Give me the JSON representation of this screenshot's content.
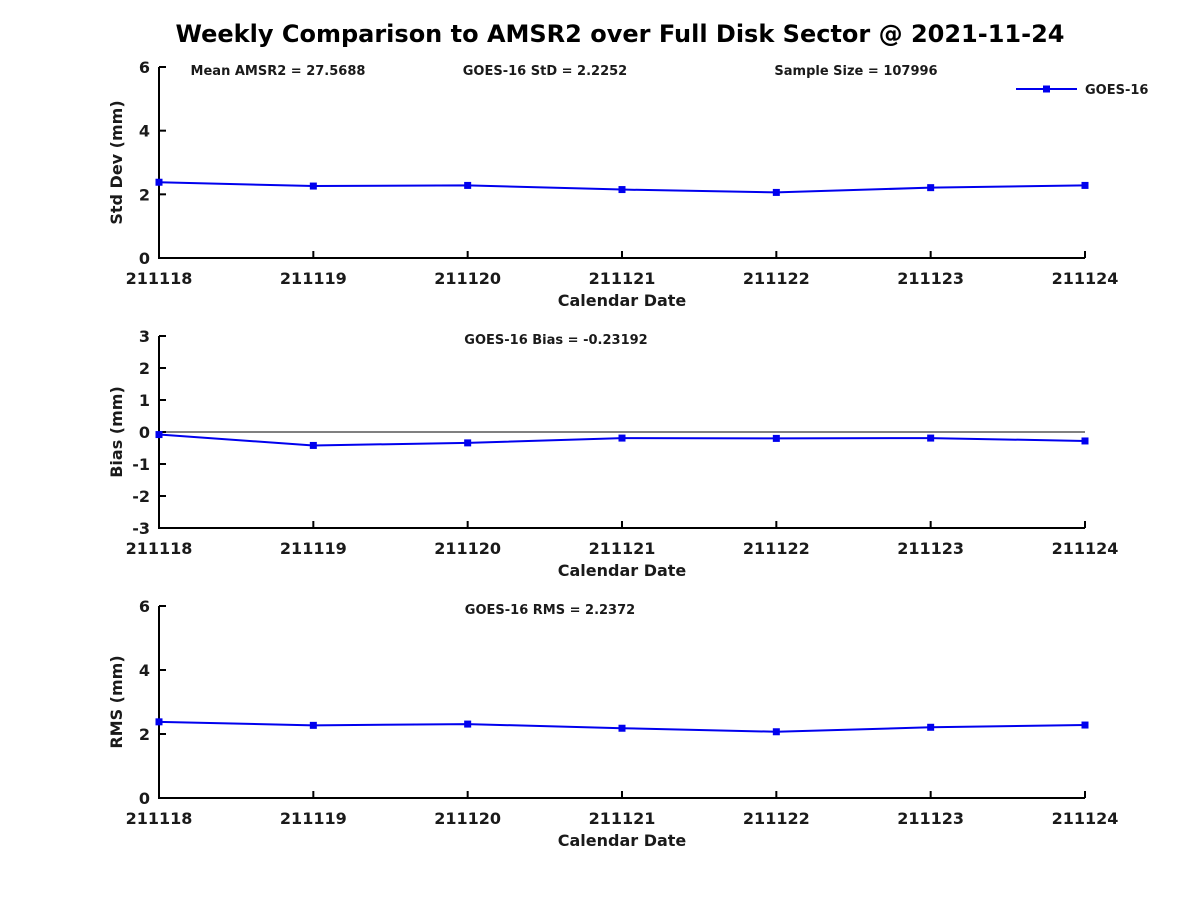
{
  "title": "Weekly Comparison to AMSR2 over Full Disk Sector @ 2021-11-24",
  "colors": {
    "series_line": "#0000ee",
    "axis": "#000000",
    "text": "#1a1a1a",
    "background": "#ffffff"
  },
  "legend": {
    "label": "GOES-16",
    "position": "top-right",
    "marker": "filled-square"
  },
  "x_axis": {
    "label": "Calendar Date",
    "categories": [
      "211118",
      "211119",
      "211120",
      "211121",
      "211122",
      "211123",
      "211124"
    ]
  },
  "chart_data": [
    {
      "type": "line",
      "name": "std-dev",
      "ylabel": "Std Dev (mm)",
      "xlabel": "Calendar Date",
      "ylim": [
        0,
        6
      ],
      "yticks": [
        "0",
        "2",
        "4",
        "6"
      ],
      "grid": false,
      "zero_line": false,
      "legend_visible": true,
      "categories": [
        "211118",
        "211119",
        "211120",
        "211121",
        "211122",
        "211123",
        "211124"
      ],
      "series": [
        {
          "name": "GOES-16",
          "values": [
            2.38,
            2.26,
            2.28,
            2.15,
            2.06,
            2.21,
            2.28
          ]
        }
      ],
      "annotations": [
        {
          "text": "Mean AMSR2 = 27.5688"
        },
        {
          "text": "GOES-16 StD = 2.2252"
        },
        {
          "text": "Sample Size = 107996"
        }
      ]
    },
    {
      "type": "line",
      "name": "bias",
      "ylabel": "Bias (mm)",
      "xlabel": "Calendar Date",
      "ylim": [
        -3,
        3
      ],
      "yticks": [
        "-3",
        "-2",
        "-1",
        "0",
        "1",
        "2",
        "3"
      ],
      "grid": false,
      "zero_line": true,
      "legend_visible": false,
      "categories": [
        "211118",
        "211119",
        "211120",
        "211121",
        "211122",
        "211123",
        "211124"
      ],
      "series": [
        {
          "name": "GOES-16",
          "values": [
            -0.08,
            -0.42,
            -0.34,
            -0.19,
            -0.2,
            -0.19,
            -0.28
          ]
        }
      ],
      "annotations": [
        {
          "text": "GOES-16 Bias  = -0.23192"
        }
      ]
    },
    {
      "type": "line",
      "name": "rms",
      "ylabel": "RMS (mm)",
      "xlabel": "Calendar Date",
      "ylim": [
        0,
        6
      ],
      "yticks": [
        "0",
        "2",
        "4",
        "6"
      ],
      "grid": false,
      "zero_line": false,
      "legend_visible": false,
      "categories": [
        "211118",
        "211119",
        "211120",
        "211121",
        "211122",
        "211123",
        "211124"
      ],
      "series": [
        {
          "name": "GOES-16",
          "values": [
            2.38,
            2.27,
            2.31,
            2.18,
            2.07,
            2.21,
            2.28
          ]
        }
      ],
      "annotations": [
        {
          "text": "GOES-16 RMS = 2.2372"
        }
      ]
    }
  ]
}
